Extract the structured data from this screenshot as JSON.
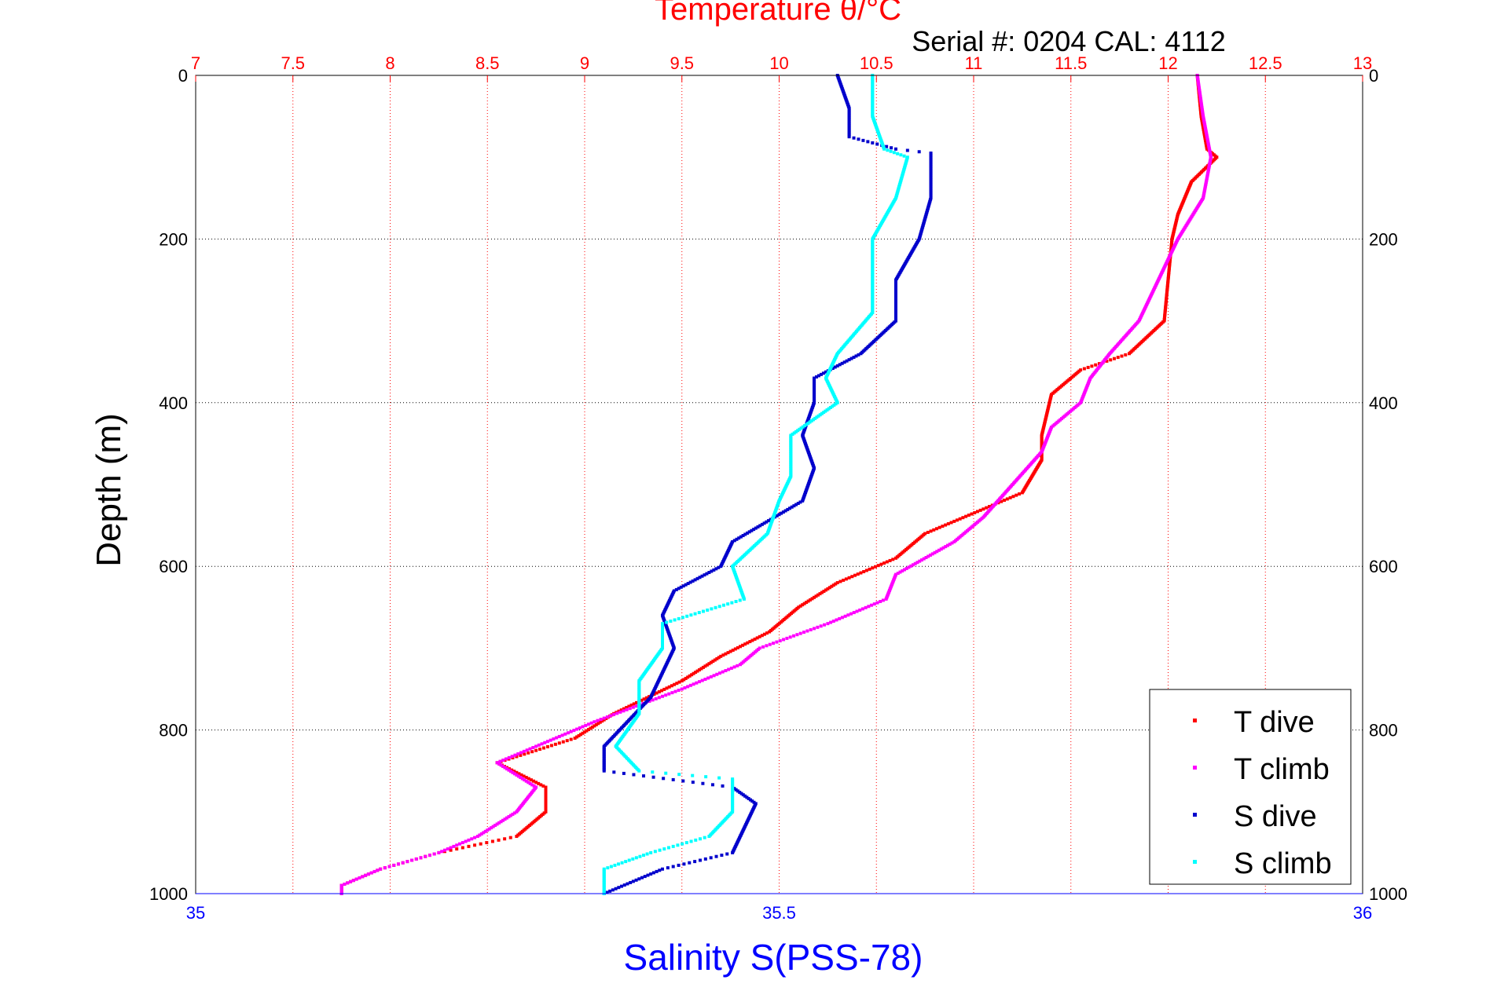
{
  "header": {
    "serial_text": "Serial #: 0204  CAL: 4112"
  },
  "colors": {
    "t_axis": "#ff0000",
    "s_axis": "#0000ff",
    "t_dive": "#ff0000",
    "t_climb": "#ff00ff",
    "s_dive": "#0000cc",
    "s_climb": "#00ffff",
    "grid": "#000000"
  },
  "chart_data": {
    "type": "scatter",
    "title": "Temperature θ/°C",
    "xlabel_top": "Temperature θ/°C",
    "xlabel_bottom": "Salinity S(PSS-78)",
    "ylabel": "Depth (m)",
    "t_lim": [
      7,
      13
    ],
    "s_lim": [
      35,
      36
    ],
    "depth_lim": [
      0,
      1000
    ],
    "depth_reversed": true,
    "t_ticks": [
      "7",
      "7.5",
      "8",
      "8.5",
      "9",
      "9.5",
      "10",
      "10.5",
      "11",
      "11.5",
      "12",
      "12.5",
      "13"
    ],
    "s_ticks": [
      "35",
      "35.5",
      "36"
    ],
    "depth_ticks": [
      "0",
      "200",
      "400",
      "600",
      "800",
      "1000"
    ],
    "grid": true,
    "legend_position": "bottom-right",
    "series": [
      {
        "name": "T dive",
        "axis": "temperature",
        "points": [
          [
            12.15,
            0
          ],
          [
            12.17,
            50
          ],
          [
            12.2,
            90
          ],
          [
            12.25,
            100
          ],
          [
            12.12,
            130
          ],
          [
            12.05,
            170
          ],
          [
            12.02,
            200
          ],
          [
            12,
            250
          ],
          [
            11.98,
            300
          ],
          [
            11.8,
            340
          ],
          [
            11.55,
            360
          ],
          [
            11.4,
            390
          ],
          [
            11.35,
            440
          ],
          [
            11.35,
            470
          ],
          [
            11.25,
            510
          ],
          [
            11.05,
            530
          ],
          [
            10.75,
            560
          ],
          [
            10.6,
            590
          ],
          [
            10.3,
            620
          ],
          [
            10.1,
            650
          ],
          [
            9.95,
            680
          ],
          [
            9.7,
            710
          ],
          [
            9.5,
            740
          ],
          [
            9.15,
            780
          ],
          [
            8.95,
            810
          ],
          [
            8.55,
            840
          ],
          [
            8.8,
            870
          ],
          [
            8.8,
            900
          ],
          [
            8.65,
            930
          ],
          [
            8.25,
            950
          ],
          [
            7.95,
            970
          ],
          [
            7.75,
            990
          ],
          [
            7.75,
            1000
          ]
        ]
      },
      {
        "name": "T climb",
        "axis": "temperature",
        "points": [
          [
            12.15,
            0
          ],
          [
            12.18,
            50
          ],
          [
            12.22,
            100
          ],
          [
            12.18,
            150
          ],
          [
            12.05,
            200
          ],
          [
            11.95,
            250
          ],
          [
            11.85,
            300
          ],
          [
            11.7,
            340
          ],
          [
            11.6,
            370
          ],
          [
            11.55,
            400
          ],
          [
            11.4,
            430
          ],
          [
            11.35,
            460
          ],
          [
            11.2,
            500
          ],
          [
            11.05,
            540
          ],
          [
            10.9,
            570
          ],
          [
            10.6,
            610
          ],
          [
            10.55,
            640
          ],
          [
            10.25,
            670
          ],
          [
            9.9,
            700
          ],
          [
            9.8,
            720
          ],
          [
            9.5,
            750
          ],
          [
            9.05,
            790
          ],
          [
            8.75,
            820
          ],
          [
            8.55,
            840
          ],
          [
            8.75,
            870
          ],
          [
            8.65,
            900
          ],
          [
            8.45,
            930
          ],
          [
            8.25,
            950
          ],
          [
            7.95,
            970
          ],
          [
            7.75,
            990
          ],
          [
            7.75,
            1000
          ]
        ]
      },
      {
        "name": "S dive",
        "axis": "salinity",
        "points": [
          [
            35.55,
            0
          ],
          [
            35.56,
            40
          ],
          [
            35.56,
            75
          ],
          [
            35.6,
            90
          ],
          [
            35.63,
            95
          ],
          [
            35.63,
            150
          ],
          [
            35.62,
            200
          ],
          [
            35.6,
            250
          ],
          [
            35.6,
            300
          ],
          [
            35.57,
            340
          ],
          [
            35.53,
            370
          ],
          [
            35.53,
            400
          ],
          [
            35.52,
            440
          ],
          [
            35.53,
            480
          ],
          [
            35.52,
            520
          ],
          [
            35.46,
            570
          ],
          [
            35.45,
            600
          ],
          [
            35.41,
            630
          ],
          [
            35.4,
            660
          ],
          [
            35.41,
            700
          ],
          [
            35.4,
            730
          ],
          [
            35.39,
            760
          ],
          [
            35.37,
            790
          ],
          [
            35.35,
            820
          ],
          [
            35.35,
            850
          ],
          [
            35.46,
            870
          ],
          [
            35.48,
            890
          ],
          [
            35.47,
            920
          ],
          [
            35.46,
            950
          ],
          [
            35.4,
            970
          ],
          [
            35.35,
            1000
          ]
        ]
      },
      {
        "name": "S climb",
        "axis": "salinity",
        "points": [
          [
            35.58,
            0
          ],
          [
            35.58,
            50
          ],
          [
            35.59,
            90
          ],
          [
            35.61,
            100
          ],
          [
            35.6,
            150
          ],
          [
            35.58,
            200
          ],
          [
            35.58,
            250
          ],
          [
            35.58,
            290
          ],
          [
            35.55,
            340
          ],
          [
            35.54,
            370
          ],
          [
            35.55,
            400
          ],
          [
            35.51,
            440
          ],
          [
            35.51,
            490
          ],
          [
            35.5,
            520
          ],
          [
            35.49,
            560
          ],
          [
            35.46,
            600
          ],
          [
            35.47,
            640
          ],
          [
            35.4,
            670
          ],
          [
            35.4,
            700
          ],
          [
            35.38,
            740
          ],
          [
            35.38,
            780
          ],
          [
            35.36,
            820
          ],
          [
            35.38,
            850
          ],
          [
            35.46,
            860
          ],
          [
            35.46,
            900
          ],
          [
            35.44,
            930
          ],
          [
            35.39,
            950
          ],
          [
            35.35,
            970
          ],
          [
            35.35,
            1000
          ]
        ]
      }
    ]
  }
}
